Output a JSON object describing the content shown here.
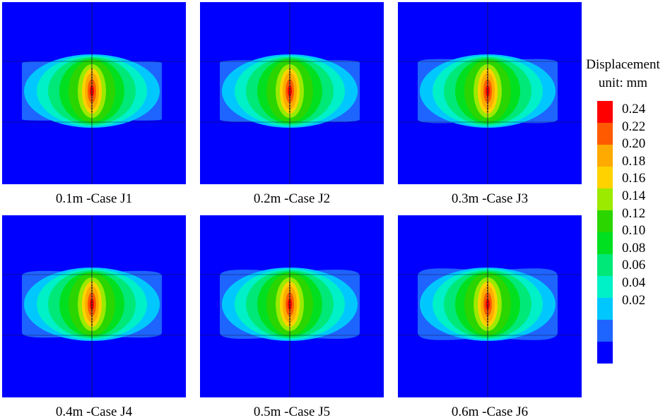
{
  "panels": [
    {
      "label": "0.1m -Case J1",
      "band": 0.1
    },
    {
      "label": "0.2m -Case J2",
      "band": 0.2
    },
    {
      "label": "0.3m -Case J3",
      "band": 0.3
    },
    {
      "label": "0.4m -Case J4",
      "band": 0.4
    },
    {
      "label": "0.5m -Case J5",
      "band": 0.5
    },
    {
      "label": "0.6m -Case J6",
      "band": 0.6
    }
  ],
  "legend": {
    "title_line1": "Displacement",
    "title_line2": "unit: mm",
    "levels": [
      "0.24",
      "0.22",
      "0.20",
      "0.18",
      "0.16",
      "0.14",
      "0.12",
      "0.10",
      "0.08",
      "0.06",
      "0.04",
      "0.02"
    ],
    "colors": [
      "#ff0000",
      "#ff5a00",
      "#ffaa00",
      "#ffd200",
      "#9bea00",
      "#2ad500",
      "#00e020",
      "#00e878",
      "#00f0c8",
      "#00c8ff",
      "#1e64ff",
      "#0000ff"
    ]
  },
  "colors": {
    "background_blue": "#0000ff",
    "contour_0_04": "#1e64ff",
    "contour_0_06": "#00c8ff",
    "contour_0_08": "#00f0c8",
    "contour_0_10": "#00e878",
    "contour_0_12": "#00e020",
    "contour_0_14": "#2ad500",
    "contour_0_16": "#9bea00",
    "contour_0_18": "#ffd200",
    "contour_0_20": "#ffaa00",
    "contour_0_22": "#ff5a00",
    "contour_0_24": "#ff0000"
  }
}
